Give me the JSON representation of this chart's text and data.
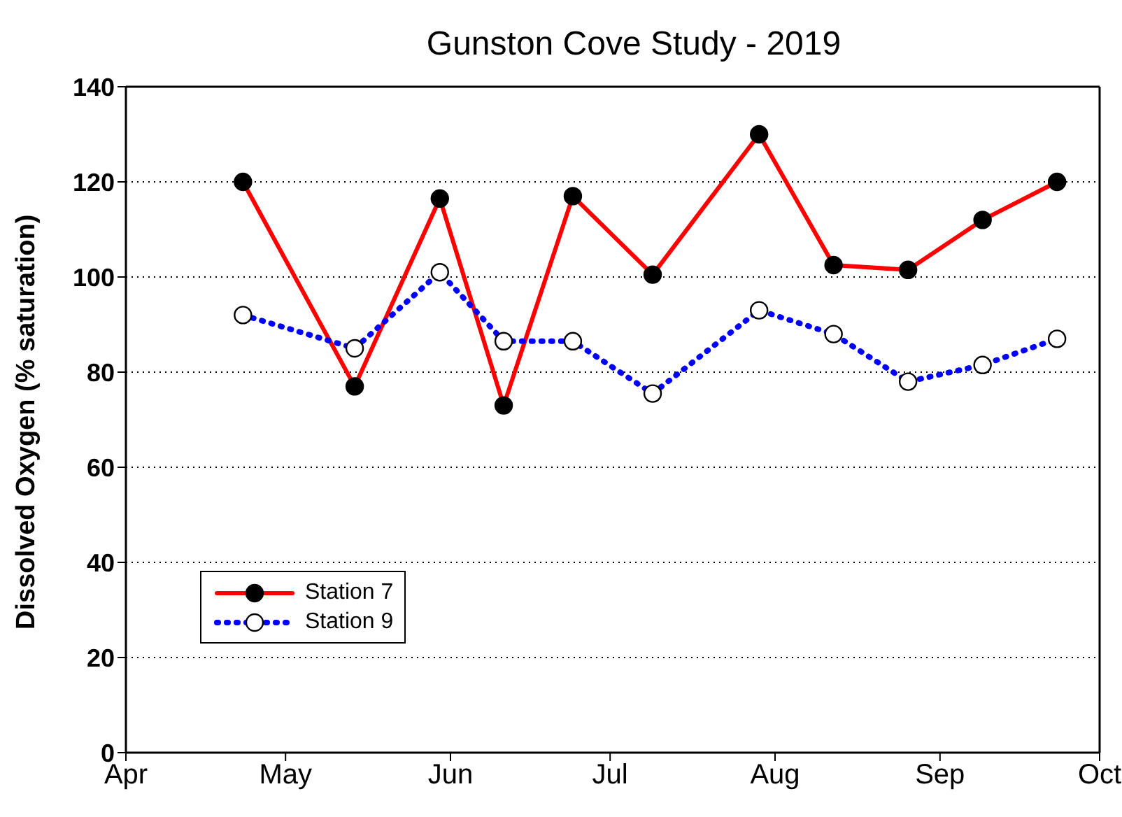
{
  "chart_data": {
    "type": "line",
    "title": "Gunston Cove Study - 2019",
    "ylabel": "Dissolved Oxygen (% saturation)",
    "x": [
      "2019-04-23",
      "2019-05-14",
      "2019-05-30",
      "2019-06-11",
      "2019-06-24",
      "2019-07-09",
      "2019-07-29",
      "2019-08-12",
      "2019-08-26",
      "2019-09-09",
      "2019-09-23"
    ],
    "series": [
      {
        "name": "Station 7",
        "color": "#ff0000",
        "line_style": "solid",
        "values": [
          120,
          77,
          116.5,
          73,
          117,
          100.5,
          130,
          102.5,
          101.5,
          112,
          120
        ]
      },
      {
        "name": "Station 9",
        "color": "#0000ff",
        "line_style": "dotted",
        "values": [
          92,
          85,
          101,
          86.5,
          86.5,
          75.5,
          93,
          88,
          78,
          81.5,
          87
        ]
      }
    ],
    "xlim": [
      "2019-04-01",
      "2019-10-01"
    ],
    "xticks": [
      {
        "value": "2019-04-01",
        "label": "Apr"
      },
      {
        "value": "2019-05-01",
        "label": "May"
      },
      {
        "value": "2019-06-01",
        "label": "Jun"
      },
      {
        "value": "2019-07-01",
        "label": "Jul"
      },
      {
        "value": "2019-08-01",
        "label": "Aug"
      },
      {
        "value": "2019-09-01",
        "label": "Sep"
      },
      {
        "value": "2019-10-01",
        "label": "Oct"
      }
    ],
    "ylim": [
      0,
      140
    ],
    "yticks": [
      0,
      20,
      40,
      60,
      80,
      100,
      120,
      140
    ],
    "grid": "y",
    "legend": "bottom left",
    "marker": "circle"
  }
}
